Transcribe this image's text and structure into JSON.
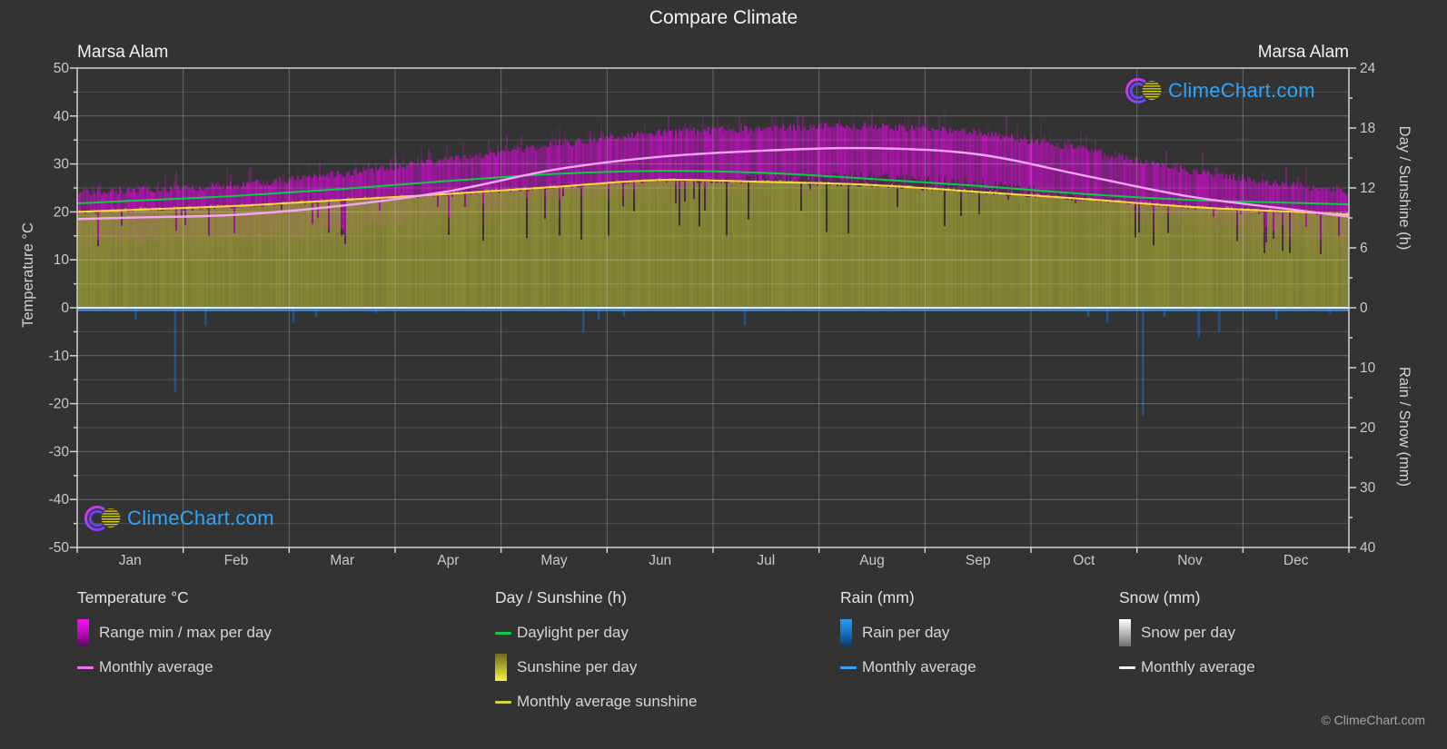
{
  "title": "Compare Climate",
  "location_left": "Marsa Alam",
  "location_right": "Marsa Alam",
  "watermark": "ClimeChart.com",
  "copyright": "© ClimeChart.com",
  "axes": {
    "left_label": "Temperature °C",
    "left_ticks": [
      50,
      40,
      30,
      20,
      10,
      0,
      -10,
      -20,
      -30,
      -40,
      -50
    ],
    "right_top_label": "Day / Sunshine (h)",
    "right_top_ticks": [
      24,
      18,
      12,
      6,
      0
    ],
    "right_bottom_label": "Rain / Snow (mm)",
    "right_bottom_ticks": [
      10,
      20,
      30,
      40
    ],
    "months": [
      "Jan",
      "Feb",
      "Mar",
      "Apr",
      "May",
      "Jun",
      "Jul",
      "Aug",
      "Sep",
      "Oct",
      "Nov",
      "Dec"
    ]
  },
  "legend": {
    "groups": [
      {
        "title": "Temperature °C",
        "items": [
          {
            "label": "Range min / max per day"
          },
          {
            "label": "Monthly average"
          }
        ]
      },
      {
        "title": "Day / Sunshine (h)",
        "items": [
          {
            "label": "Daylight per day"
          },
          {
            "label": "Sunshine per day"
          },
          {
            "label": "Monthly average sunshine"
          }
        ]
      },
      {
        "title": "Rain (mm)",
        "items": [
          {
            "label": "Rain per day"
          },
          {
            "label": "Monthly average"
          }
        ]
      },
      {
        "title": "Snow (mm)",
        "items": [
          {
            "label": "Snow per day"
          },
          {
            "label": "Monthly average"
          }
        ]
      }
    ]
  },
  "colors": {
    "background": "#333333",
    "range_band": "#b212b2",
    "range_spike": "#c615c6",
    "temp_avg_line": "#f3a6f3",
    "daylight_line": "#06cf45",
    "sunshine_fill": "#8e9134",
    "sunshine_avg_line": "#ffd73e",
    "rain_bar": "#1a5fa8",
    "rain_avg_line": "#3aa0ff",
    "snow_avg_line": "#ececec",
    "grid_major": "rgba(255,255,255,0.26)",
    "grid_minor": "rgba(255,255,255,0.14)",
    "axis_border": "#d2d2d2",
    "tick_text": "#c9c9c9",
    "axis_label_text": "#d2d2d2",
    "watermark_blue": "#2ca6fc"
  },
  "chart_data": {
    "type": "area",
    "title": "Compare Climate",
    "location": "Marsa Alam",
    "x_categories": [
      "Jan",
      "Feb",
      "Mar",
      "Apr",
      "May",
      "Jun",
      "Jul",
      "Aug",
      "Sep",
      "Oct",
      "Nov",
      "Dec"
    ],
    "axis_ranges": {
      "temperature_c": [
        -50,
        50
      ],
      "day_sunshine_h": [
        0,
        24
      ],
      "rain_snow_mm": [
        0,
        40
      ],
      "note": "Day/Sunshine axis (0-24h) spans the 0..50°C half; Rain/Snow axis (0-40mm) spans downward over the 0..-50°C half"
    },
    "series": [
      {
        "name": "Daily max temperature envelope (°C)",
        "values": [
          24.5,
          25.5,
          28,
          31,
          34,
          36.5,
          37.5,
          38,
          36.5,
          33,
          28.5,
          25.5
        ]
      },
      {
        "name": "Daily min temperature envelope (°C)",
        "values": [
          15.5,
          16,
          17.5,
          20.5,
          24,
          26.5,
          28,
          28.5,
          27,
          24,
          20,
          17
        ]
      },
      {
        "name": "Monthly average temperature (°C)",
        "values": [
          18.8,
          19.4,
          21.3,
          24.3,
          28.8,
          31.5,
          32.8,
          33.3,
          32.0,
          27.6,
          23.2,
          20.4
        ]
      },
      {
        "name": "Daylight per day (h)",
        "values": [
          10.7,
          11.2,
          11.9,
          12.7,
          13.4,
          13.7,
          13.5,
          12.9,
          12.2,
          11.4,
          10.8,
          10.5
        ]
      },
      {
        "name": "Monthly average sunshine (h)",
        "values": [
          9.8,
          10.2,
          10.8,
          11.4,
          12.1,
          12.8,
          12.6,
          12.3,
          11.6,
          10.9,
          10.1,
          9.6
        ]
      },
      {
        "name": "Monthly average rain (mm)",
        "values": [
          0.3,
          0.2,
          0.2,
          0.1,
          0.1,
          0,
          0,
          0,
          0,
          0.4,
          1.2,
          0.3
        ]
      },
      {
        "name": "Monthly average snow (mm)",
        "values": [
          0,
          0,
          0,
          0,
          0,
          0,
          0,
          0,
          0,
          0,
          0,
          0
        ]
      }
    ],
    "rain_events": [
      {
        "day_frac": 0.046,
        "mm": 2
      },
      {
        "day_frac": 0.077,
        "mm": 14
      },
      {
        "day_frac": 0.101,
        "mm": 3
      },
      {
        "day_frac": 0.17,
        "mm": 2.5
      },
      {
        "day_frac": 0.188,
        "mm": 1.5
      },
      {
        "day_frac": 0.235,
        "mm": 1
      },
      {
        "day_frac": 0.398,
        "mm": 4
      },
      {
        "day_frac": 0.41,
        "mm": 2
      },
      {
        "day_frac": 0.43,
        "mm": 1.5
      },
      {
        "day_frac": 0.525,
        "mm": 3
      },
      {
        "day_frac": 0.795,
        "mm": 1.5
      },
      {
        "day_frac": 0.81,
        "mm": 2.5
      },
      {
        "day_frac": 0.838,
        "mm": 18
      },
      {
        "day_frac": 0.855,
        "mm": 1.5
      },
      {
        "day_frac": 0.882,
        "mm": 5
      },
      {
        "day_frac": 0.898,
        "mm": 4
      },
      {
        "day_frac": 0.943,
        "mm": 2
      },
      {
        "day_frac": 0.985,
        "mm": 1
      }
    ],
    "legend_position": "bottom",
    "grid": true
  }
}
